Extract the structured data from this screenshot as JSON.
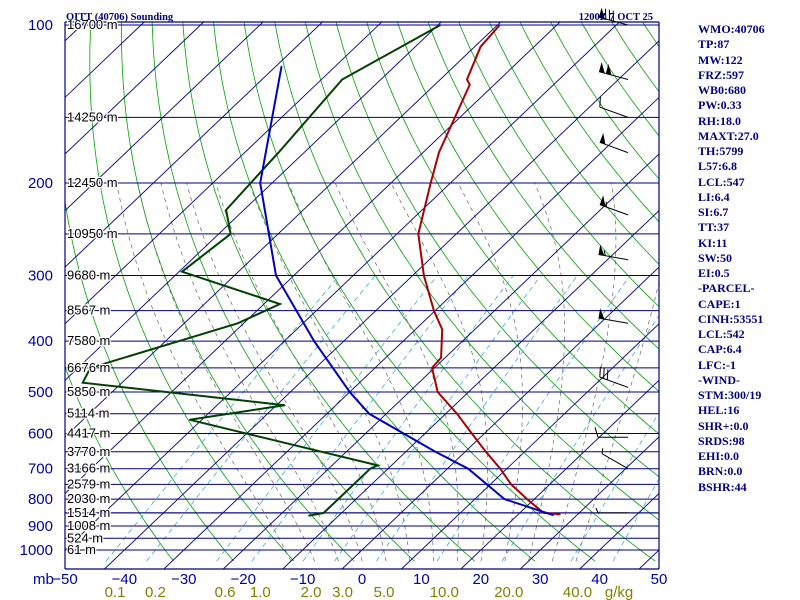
{
  "header": {
    "station": "OITT (40706) Sounding",
    "time": "1200Z  7 OCT 25"
  },
  "indices": [
    "WMO:40706",
    "TP:87",
    "MW:122",
    "FRZ:597",
    "WB0:680",
    "PW:0.33",
    "RH:18.0",
    "MAXT:27.0",
    "TH:5799",
    "L57:6.8",
    "LCL:547",
    "LI:6.4",
    "SI:6.7",
    "TT:37",
    "KI:11",
    "SW:50",
    "EI:0.5",
    "-PARCEL-",
    "CAPE:1",
    "CINH:53551",
    "LCL:542",
    "CAP:6.4",
    "LFC:-1",
    "-WIND-",
    "STM:300/19",
    "HEL:16",
    "SHR+:0.0",
    "SRDS:98",
    "EHI:0.0",
    "BRN:0.0",
    "BSHR:44"
  ],
  "colors": {
    "isobar": "#000080",
    "isotherm": "#000080",
    "dry_adiabat": "#00a000",
    "moist_adiabat": "#666666",
    "mixing_ratio": "#3fa9d9",
    "temperature": "#aa0000",
    "dewpoint": "#004000",
    "parcel": "#0000c0",
    "axis_text": "#0000a0",
    "mixing_text": "#808000"
  },
  "chart_data": {
    "type": "line",
    "title": "OITT (40706) Sounding",
    "xlabel": "",
    "ylabel": "mb",
    "xlim": [
      -50,
      50
    ],
    "ylim": [
      1000,
      100
    ],
    "y_scale": "log",
    "x_ticks": [
      "−50",
      "−40",
      "−30",
      "−20",
      "−10",
      "0",
      "10",
      "20",
      "30",
      "40",
      "50"
    ],
    "x_tick_values": [
      -50,
      -40,
      -30,
      -20,
      -10,
      0,
      10,
      20,
      30,
      40,
      50
    ],
    "pressure_ticks": [
      {
        "p": 100,
        "label": "100"
      },
      {
        "p": 200,
        "label": "200"
      },
      {
        "p": 300,
        "label": "300"
      },
      {
        "p": 400,
        "label": "400"
      },
      {
        "p": 500,
        "label": "500"
      },
      {
        "p": 600,
        "label": "600"
      },
      {
        "p": 700,
        "label": "700"
      },
      {
        "p": 800,
        "label": "800"
      },
      {
        "p": 900,
        "label": "900"
      },
      {
        "p": 1000,
        "label": "1000"
      }
    ],
    "height_labels": [
      {
        "p": 100,
        "label": "16700 m"
      },
      {
        "p": 150,
        "label": "14250 m"
      },
      {
        "p": 200,
        "label": "12450 m"
      },
      {
        "p": 250,
        "label": "10950 m"
      },
      {
        "p": 300,
        "label": "9680 m"
      },
      {
        "p": 350,
        "label": "8567 m"
      },
      {
        "p": 400,
        "label": "7580 m"
      },
      {
        "p": 450,
        "label": "6676 m"
      },
      {
        "p": 500,
        "label": "5850 m"
      },
      {
        "p": 550,
        "label": "5114 m"
      },
      {
        "p": 600,
        "label": "4417 m"
      },
      {
        "p": 650,
        "label": "3770 m"
      },
      {
        "p": 700,
        "label": "3166 m"
      },
      {
        "p": 750,
        "label": "2579 m"
      },
      {
        "p": 800,
        "label": "2030 m"
      },
      {
        "p": 850,
        "label": "1514 m"
      },
      {
        "p": 900,
        "label": "1008 m"
      },
      {
        "p": 950,
        "label": "524 m"
      },
      {
        "p": 1000,
        "label": "61 m"
      }
    ],
    "extra_isobars": [
      850
    ],
    "mixing_ratio_labels": [
      "0.1",
      "0.2",
      "0.6",
      "1.0",
      "2.0",
      "3.0",
      "5.0",
      "10.0",
      "20.0",
      "40.0",
      "g/kg"
    ],
    "mixing_ratio_positions": [
      0.1,
      0.2,
      0.6,
      1.0,
      2.0,
      3.0,
      5.0,
      10.0,
      20.0,
      40.0,
      60.0
    ],
    "series": [
      {
        "name": "Temperature",
        "points": [
          [
            100,
            -69.6
          ],
          [
            110,
            -69.0
          ],
          [
            127,
            -65.5
          ],
          [
            130,
            -64.1
          ],
          [
            175,
            -57.3
          ],
          [
            200,
            -53.3
          ],
          [
            250,
            -46.4
          ],
          [
            300,
            -38.1
          ],
          [
            350,
            -30.2
          ],
          [
            380,
            -25.5
          ],
          [
            430,
            -20.7
          ],
          [
            450,
            -20.4
          ],
          [
            500,
            -15.2
          ],
          [
            550,
            -8.1
          ],
          [
            600,
            -2.1
          ],
          [
            650,
            3.5
          ],
          [
            700,
            8.9
          ],
          [
            750,
            13.5
          ],
          [
            800,
            18.8
          ],
          [
            850,
            24.0
          ],
          [
            855,
            27.0
          ]
        ]
      },
      {
        "name": "Dewpoint",
        "points": [
          [
            100,
            -79.6
          ],
          [
            127,
            -86.5
          ],
          [
            175,
            -84.3
          ],
          [
            225,
            -83.0
          ],
          [
            250,
            -78.0
          ],
          [
            295,
            -79.5
          ],
          [
            340,
            -57.3
          ],
          [
            370,
            -61.0
          ],
          [
            450,
            -77.9
          ],
          [
            480,
            -76.6
          ],
          [
            530,
            -38.6
          ],
          [
            565,
            -52.0
          ],
          [
            690,
            -12.3
          ],
          [
            700,
            -13.0
          ],
          [
            800,
            -13.0
          ],
          [
            850,
            -13.0
          ],
          [
            860,
            -15.0
          ]
        ]
      },
      {
        "name": "Parcel",
        "points": [
          [
            120,
            -99.0
          ],
          [
            200,
            -82.0
          ],
          [
            300,
            -63.0
          ],
          [
            400,
            -45.0
          ],
          [
            500,
            -30.0
          ],
          [
            550,
            -22.9
          ],
          [
            650,
            -5.0
          ],
          [
            700,
            3.5
          ],
          [
            800,
            15.0
          ],
          [
            858,
            26.0
          ]
        ]
      }
    ],
    "wind_barbs": [
      {
        "p": 100,
        "dir": 285,
        "spd": 80
      },
      {
        "p": 127,
        "dir": 285,
        "spd": 100
      },
      {
        "p": 150,
        "dir": 290,
        "spd": 10
      },
      {
        "p": 175,
        "dir": 290,
        "spd": 50
      },
      {
        "p": 230,
        "dir": 290,
        "spd": 55
      },
      {
        "p": 280,
        "dir": 280,
        "spd": 55
      },
      {
        "p": 370,
        "dir": 280,
        "spd": 50
      },
      {
        "p": 490,
        "dir": 290,
        "spd": 30
      },
      {
        "p": 610,
        "dir": 270,
        "spd": 10
      },
      {
        "p": 700,
        "dir": 300,
        "spd": 5
      },
      {
        "p": 850,
        "dir": 270,
        "spd": 5
      }
    ],
    "grid": true
  }
}
